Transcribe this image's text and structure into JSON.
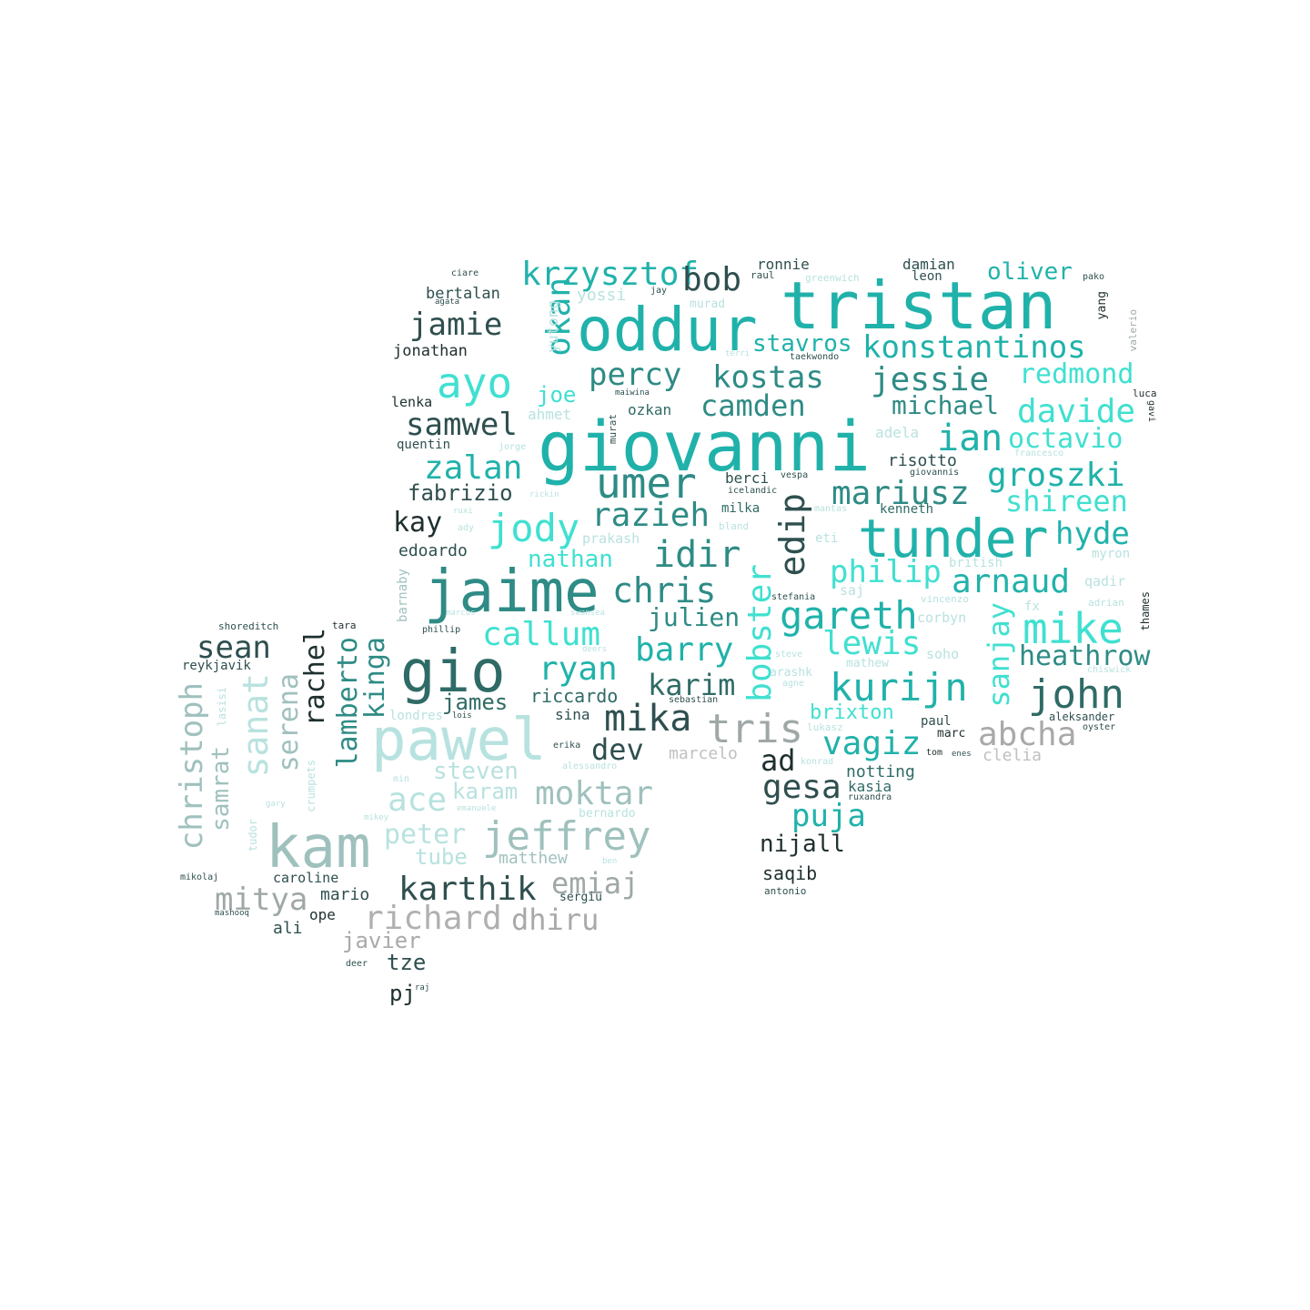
{
  "words": [
    {
      "text": "giovanni",
      "color": "#20b2aa"
    },
    {
      "text": "tristan",
      "color": "#20b2aa"
    },
    {
      "text": "oddur",
      "color": "#20b2aa"
    },
    {
      "text": "jaime",
      "color": "#2e8b85"
    },
    {
      "text": "gio",
      "color": "#2f6b66"
    },
    {
      "text": "pawel",
      "color": "#b8e2df"
    },
    {
      "text": "kam",
      "color": "#9fc1be"
    },
    {
      "text": "tunder",
      "color": "#20b2aa"
    },
    {
      "text": "umer",
      "color": "#2e8b85"
    },
    {
      "text": "krzysztof",
      "color": "#20b2aa"
    },
    {
      "text": "konstantinos",
      "color": "#20b2aa"
    },
    {
      "text": "ayo",
      "color": "#40e0d0"
    },
    {
      "text": "bob",
      "color": "#2f4f4f"
    },
    {
      "text": "okan",
      "color": "#20b2aa"
    },
    {
      "text": "jamie",
      "color": "#2f4f4f"
    },
    {
      "text": "percy",
      "color": "#2e8b85"
    },
    {
      "text": "kostas",
      "color": "#2e8b85"
    },
    {
      "text": "jessie",
      "color": "#2e8b85"
    },
    {
      "text": "redmond",
      "color": "#40e0d0"
    },
    {
      "text": "oliver",
      "color": "#20b2aa"
    },
    {
      "text": "stavros",
      "color": "#20b2aa"
    },
    {
      "text": "camden",
      "color": "#2e8b85"
    },
    {
      "text": "michael",
      "color": "#2e8b85"
    },
    {
      "text": "davide",
      "color": "#40e0d0"
    },
    {
      "text": "samwel",
      "color": "#2f4f4f"
    },
    {
      "text": "joe",
      "color": "#40e0d0"
    },
    {
      "text": "ian",
      "color": "#20b2aa"
    },
    {
      "text": "octavio",
      "color": "#40e0d0"
    },
    {
      "text": "zalan",
      "color": "#20b2aa"
    },
    {
      "text": "groszki",
      "color": "#20b2aa"
    },
    {
      "text": "mariusz",
      "color": "#2e8b85"
    },
    {
      "text": "shireen",
      "color": "#40e0d0"
    },
    {
      "text": "fabrizio",
      "color": "#2f4f4f"
    },
    {
      "text": "kay",
      "color": "#1f2f2f"
    },
    {
      "text": "jody",
      "color": "#40e0d0"
    },
    {
      "text": "razieh",
      "color": "#2e8b85"
    },
    {
      "text": "edip",
      "color": "#2f4f4f"
    },
    {
      "text": "hyde",
      "color": "#20b2aa"
    },
    {
      "text": "idir",
      "color": "#2e8b85"
    },
    {
      "text": "edoardo",
      "color": "#2f4f4f"
    },
    {
      "text": "nathan",
      "color": "#40e0d0"
    },
    {
      "text": "philip",
      "color": "#40e0d0"
    },
    {
      "text": "arnaud",
      "color": "#20b2aa"
    },
    {
      "text": "chris",
      "color": "#2e8b85"
    },
    {
      "text": "gareth",
      "color": "#20b2aa"
    },
    {
      "text": "mike",
      "color": "#40e0d0"
    },
    {
      "text": "bobster",
      "color": "#40e0d0"
    },
    {
      "text": "sanjay",
      "color": "#40e0d0"
    },
    {
      "text": "julien",
      "color": "#2e8b85"
    },
    {
      "text": "callum",
      "color": "#40e0d0"
    },
    {
      "text": "lewis",
      "color": "#40e0d0"
    },
    {
      "text": "heathrow",
      "color": "#2e8b85"
    },
    {
      "text": "barry",
      "color": "#20b2aa"
    },
    {
      "text": "ryan",
      "color": "#20b2aa"
    },
    {
      "text": "karim",
      "color": "#2f6b66"
    },
    {
      "text": "kurijn",
      "color": "#20b2aa"
    },
    {
      "text": "john",
      "color": "#2f6b66"
    },
    {
      "text": "sean",
      "color": "#2f4f4f"
    },
    {
      "text": "rachel",
      "color": "#1f2f2f"
    },
    {
      "text": "lamberto",
      "color": "#2e8b85"
    },
    {
      "text": "kinga",
      "color": "#2e8b85"
    },
    {
      "text": "serena",
      "color": "#9fc1be"
    },
    {
      "text": "sanat",
      "color": "#b8e2df"
    },
    {
      "text": "christoph",
      "color": "#9fc1be"
    },
    {
      "text": "samrat",
      "color": "#9fc1be"
    },
    {
      "text": "james",
      "color": "#2f6b66"
    },
    {
      "text": "riccardo",
      "color": "#2f6b66"
    },
    {
      "text": "mika",
      "color": "#2f4f4f"
    },
    {
      "text": "tris",
      "color": "#9fa8a7"
    },
    {
      "text": "brixton",
      "color": "#40e0d0"
    },
    {
      "text": "vagiz",
      "color": "#20b2aa"
    },
    {
      "text": "abcha",
      "color": "#a9a9a9"
    },
    {
      "text": "dev",
      "color": "#2f4f4f"
    },
    {
      "text": "ad",
      "color": "#1f2f2f"
    },
    {
      "text": "marcelo",
      "color": "#c0c0c0"
    },
    {
      "text": "clelia",
      "color": "#c0c0c0"
    },
    {
      "text": "gesa",
      "color": "#2f4f4f"
    },
    {
      "text": "notting",
      "color": "#2f6b66"
    },
    {
      "text": "kasia",
      "color": "#2f6b66"
    },
    {
      "text": "steven",
      "color": "#b8e2df"
    },
    {
      "text": "karam",
      "color": "#b8e2df"
    },
    {
      "text": "moktar",
      "color": "#9fc1be"
    },
    {
      "text": "ace",
      "color": "#b8e2df"
    },
    {
      "text": "puja",
      "color": "#20b2aa"
    },
    {
      "text": "peter",
      "color": "#b8e2df"
    },
    {
      "text": "jeffrey",
      "color": "#9fc1be"
    },
    {
      "text": "nijall",
      "color": "#1f2f2f"
    },
    {
      "text": "tube",
      "color": "#b8e2df"
    },
    {
      "text": "matthew",
      "color": "#9fc1be"
    },
    {
      "text": "saqib",
      "color": "#1f2f2f"
    },
    {
      "text": "karthik",
      "color": "#2f4f4f"
    },
    {
      "text": "emiaj",
      "color": "#9fa8a7"
    },
    {
      "text": "mitya",
      "color": "#9fa8a7"
    },
    {
      "text": "richard",
      "color": "#b0b0b0"
    },
    {
      "text": "dhiru",
      "color": "#a9a9a9"
    },
    {
      "text": "javier",
      "color": "#a9a9a9"
    },
    {
      "text": "tze",
      "color": "#2f4f4f"
    },
    {
      "text": "pj",
      "color": "#1f2f2f"
    },
    {
      "text": "mario",
      "color": "#2f4f4f"
    },
    {
      "text": "ali",
      "color": "#2f4f4f"
    },
    {
      "text": "ope",
      "color": "#1f2f2f"
    },
    {
      "text": "caroline",
      "color": "#2f4f4f"
    },
    {
      "text": "sergiu",
      "color": "#2f4f4f"
    },
    {
      "text": "yutong",
      "color": "#b8e2df"
    },
    {
      "text": "yossi",
      "color": "#b8e2df"
    },
    {
      "text": "bertalan",
      "color": "#2f4f4f"
    },
    {
      "text": "jonathan",
      "color": "#1f2f2f"
    },
    {
      "text": "lenka",
      "color": "#1f2f2f"
    },
    {
      "text": "quentin",
      "color": "#2f4f4f"
    },
    {
      "text": "ahmet",
      "color": "#b8e2df"
    },
    {
      "text": "ozkan",
      "color": "#2f6b66"
    },
    {
      "text": "ronnie",
      "color": "#2f4f4f"
    },
    {
      "text": "damian",
      "color": "#2f4f4f"
    },
    {
      "text": "leon",
      "color": "#2f4f4f"
    },
    {
      "text": "murad",
      "color": "#b8e2df"
    },
    {
      "text": "raul",
      "color": "#2f4f4f"
    },
    {
      "text": "greenwich",
      "color": "#b8e2df"
    },
    {
      "text": "yang",
      "color": "#1f2f2f"
    },
    {
      "text": "pako",
      "color": "#2f4f4f"
    },
    {
      "text": "valerio",
      "color": "#9fa8a7"
    },
    {
      "text": "luca",
      "color": "#1f2f2f"
    },
    {
      "text": "gavi",
      "color": "#1f2f2f"
    },
    {
      "text": "risotto",
      "color": "#2f4f4f"
    },
    {
      "text": "adela",
      "color": "#b8e2df"
    },
    {
      "text": "giovannis",
      "color": "#2f4f4f"
    },
    {
      "text": "francesco",
      "color": "#b8e2df"
    },
    {
      "text": "berci",
      "color": "#2f4f4f"
    },
    {
      "text": "vespa",
      "color": "#2f4f4f"
    },
    {
      "text": "icelandic",
      "color": "#2f4f4f"
    },
    {
      "text": "milka",
      "color": "#2f6b66"
    },
    {
      "text": "mantas",
      "color": "#b8e2df"
    },
    {
      "text": "kenneth",
      "color": "#2f6b66"
    },
    {
      "text": "bland",
      "color": "#b8e2df"
    },
    {
      "text": "prakash",
      "color": "#b8e2df"
    },
    {
      "text": "eti",
      "color": "#b8e2df"
    },
    {
      "text": "myron",
      "color": "#b8e2df"
    },
    {
      "text": "british",
      "color": "#b8e2df"
    },
    {
      "text": "qadir",
      "color": "#b8e2df"
    },
    {
      "text": "saj",
      "color": "#b8e2df"
    },
    {
      "text": "stefania",
      "color": "#2f4f4f"
    },
    {
      "text": "vincenzo",
      "color": "#b8e2df"
    },
    {
      "text": "fx",
      "color": "#b8e2df"
    },
    {
      "text": "adrian",
      "color": "#b8e2df"
    },
    {
      "text": "thames",
      "color": "#1f2f2f"
    },
    {
      "text": "corbyn",
      "color": "#b8e2df"
    },
    {
      "text": "soho",
      "color": "#b8e2df"
    },
    {
      "text": "chiswick",
      "color": "#b8e2df"
    },
    {
      "text": "steve",
      "color": "#b8e2df"
    },
    {
      "text": "arashk",
      "color": "#b8e2df"
    },
    {
      "text": "mathew",
      "color": "#b8e2df"
    },
    {
      "text": "agne",
      "color": "#b8e2df"
    },
    {
      "text": "sebastian",
      "color": "#2f4f4f"
    },
    {
      "text": "lukasz",
      "color": "#b8e2df"
    },
    {
      "text": "paul",
      "color": "#2f4f4f"
    },
    {
      "text": "aleksander",
      "color": "#2f4f4f"
    },
    {
      "text": "oyster",
      "color": "#2f4f4f"
    },
    {
      "text": "marc",
      "color": "#1f2f2f"
    },
    {
      "text": "tom",
      "color": "#1f2f2f"
    },
    {
      "text": "enes",
      "color": "#2f4f4f"
    },
    {
      "text": "konrad",
      "color": "#b8e2df"
    },
    {
      "text": "ruxandra",
      "color": "#2f4f4f"
    },
    {
      "text": "shoreditch",
      "color": "#2f4f4f"
    },
    {
      "text": "tara",
      "color": "#1f2f2f"
    },
    {
      "text": "reykjavik",
      "color": "#2f4f4f"
    },
    {
      "text": "barnaby",
      "color": "#9fc1be"
    },
    {
      "text": "phillip",
      "color": "#2f4f4f"
    },
    {
      "text": "marcus",
      "color": "#b8e2df"
    },
    {
      "text": "swansea",
      "color": "#b8e2df"
    },
    {
      "text": "deers",
      "color": "#b8e2df"
    },
    {
      "text": "lasisi",
      "color": "#b8e2df"
    },
    {
      "text": "londres",
      "color": "#b8e2df"
    },
    {
      "text": "lois",
      "color": "#2f4f4f"
    },
    {
      "text": "sina",
      "color": "#2f4f4f"
    },
    {
      "text": "erika",
      "color": "#2f4f4f"
    },
    {
      "text": "alessandro",
      "color": "#b8e2df"
    },
    {
      "text": "crumpets",
      "color": "#b8e2df"
    },
    {
      "text": "tudor",
      "color": "#b8e2df"
    },
    {
      "text": "gary",
      "color": "#b8e2df"
    },
    {
      "text": "mikey",
      "color": "#b8e2df"
    },
    {
      "text": "emanuele",
      "color": "#b8e2df"
    },
    {
      "text": "bernardo",
      "color": "#b8e2df"
    },
    {
      "text": "ben",
      "color": "#b8e2df"
    },
    {
      "text": "min",
      "color": "#b8e2df"
    },
    {
      "text": "mikolaj",
      "color": "#2f4f4f"
    },
    {
      "text": "mashooq",
      "color": "#2f4f4f"
    },
    {
      "text": "antonio",
      "color": "#2f4f4f"
    },
    {
      "text": "deer",
      "color": "#2f4f4f"
    },
    {
      "text": "raj",
      "color": "#2f4f4f"
    },
    {
      "text": "ciare",
      "color": "#2f4f4f"
    },
    {
      "text": "agata",
      "color": "#2f4f4f"
    },
    {
      "text": "jay",
      "color": "#2f4f4f"
    },
    {
      "text": "terri",
      "color": "#b8e2df"
    },
    {
      "text": "taekwondo",
      "color": "#2f4f4f"
    },
    {
      "text": "maiwina",
      "color": "#2f4f4f"
    },
    {
      "text": "murat",
      "color": "#2f4f4f"
    },
    {
      "text": "jorge",
      "color": "#b8e2df"
    },
    {
      "text": "rickin",
      "color": "#b8e2df"
    },
    {
      "text": "ruxi",
      "color": "#b8e2df"
    },
    {
      "text": "ady",
      "color": "#b8e2df"
    }
  ]
}
